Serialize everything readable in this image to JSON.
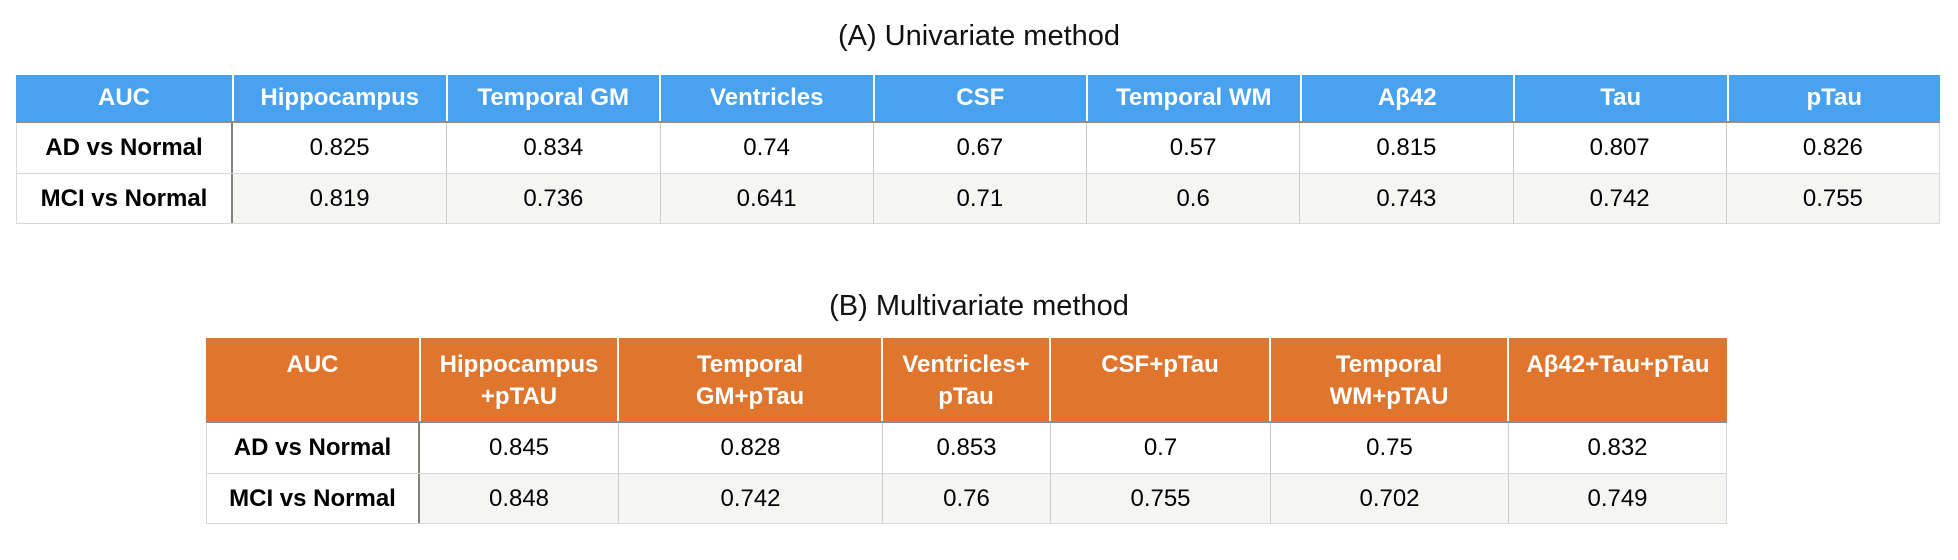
{
  "colors": {
    "univariate_header_bg": "#49a2f0",
    "multivariate_header_bg": "#e0762e",
    "header_text": "#ffffff",
    "header_bottom_rule": "#8e8e8e",
    "row_label_divider": "#82827a",
    "alt_row_bg": "#f5f5f4",
    "grid_line": "#cccccc"
  },
  "chart_data": [
    {
      "type": "table",
      "title": "(A) Univariate method",
      "columns": [
        "AUC",
        "Hippocampus",
        "Temporal GM",
        "Ventricles",
        "CSF",
        "Temporal WM",
        "Aβ42",
        "Tau",
        "pTau"
      ],
      "rows": [
        {
          "label": "AD vs Normal",
          "values": [
            0.825,
            0.834,
            0.74,
            0.67,
            0.57,
            0.815,
            0.807,
            0.826
          ]
        },
        {
          "label": "MCI vs Normal",
          "values": [
            0.819,
            0.736,
            0.641,
            0.71,
            0.6,
            0.743,
            0.742,
            0.755
          ]
        }
      ]
    },
    {
      "type": "table",
      "title": "(B) Multivariate method",
      "columns": [
        "AUC",
        "Hippocampus\n+pTAU",
        "Temporal\nGM+pTau",
        "Ventricles+\npTau",
        "CSF+pTau",
        "Temporal\nWM+pTAU",
        "Aβ42+Tau+pTau"
      ],
      "rows": [
        {
          "label": "AD vs Normal",
          "values": [
            0.845,
            0.828,
            0.853,
            0.7,
            0.75,
            0.832
          ]
        },
        {
          "label": "MCI vs Normal",
          "values": [
            0.848,
            0.742,
            0.76,
            0.755,
            0.702,
            0.749
          ]
        }
      ]
    }
  ]
}
